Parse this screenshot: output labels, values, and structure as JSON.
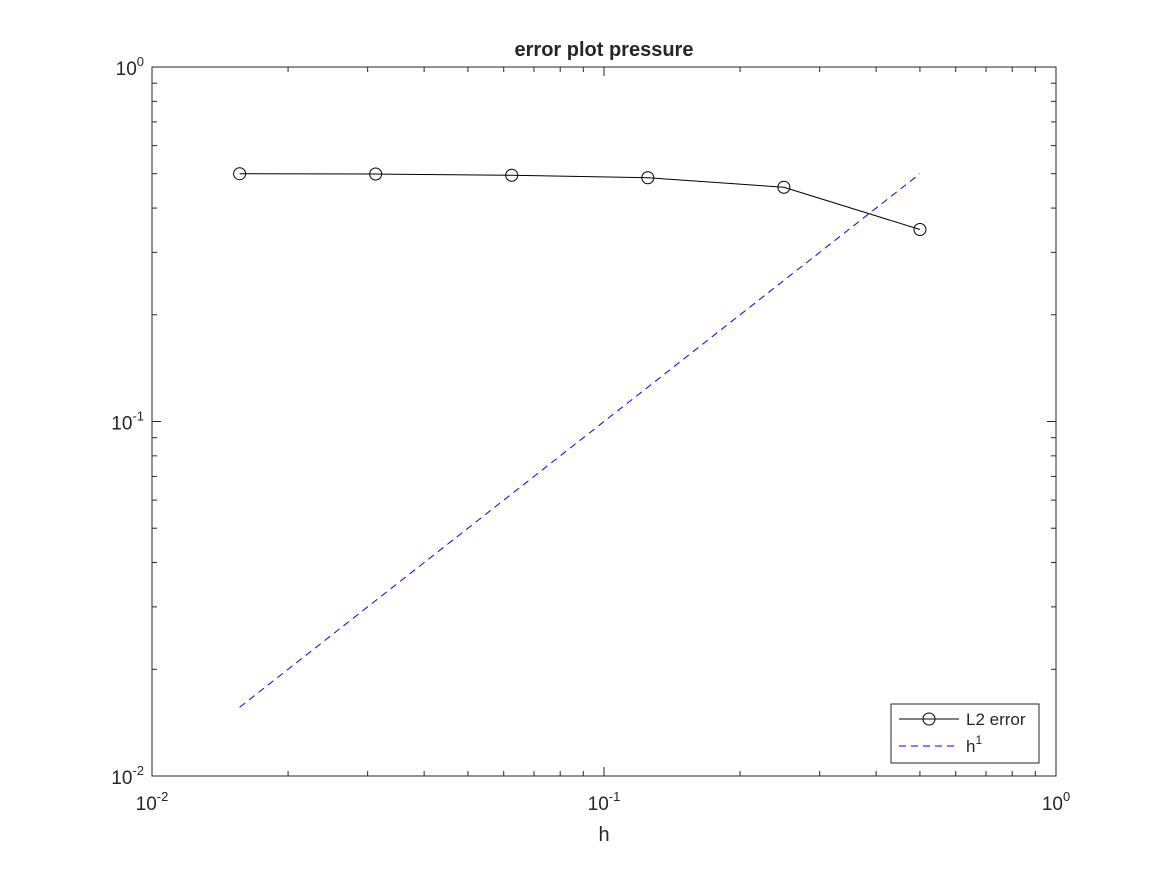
{
  "chart_data": {
    "type": "line",
    "title": "error plot pressure",
    "xlabel": "h",
    "ylabel": "",
    "xscale": "log",
    "yscale": "log",
    "xlim": [
      0.01,
      1
    ],
    "ylim": [
      0.01,
      1
    ],
    "grid": false,
    "legend_position": "bottom-right",
    "x_ticks": [
      {
        "value": 0.01,
        "base": "10",
        "exp": "-2"
      },
      {
        "value": 0.1,
        "base": "10",
        "exp": "-1"
      },
      {
        "value": 1,
        "base": "10",
        "exp": "0"
      }
    ],
    "y_ticks": [
      {
        "value": 0.01,
        "base": "10",
        "exp": "-2"
      },
      {
        "value": 0.1,
        "base": "10",
        "exp": "-1"
      },
      {
        "value": 1,
        "base": "10",
        "exp": "0"
      }
    ],
    "series": [
      {
        "name": "L2 error",
        "color": "#000000",
        "line_style": "solid",
        "marker": "circle",
        "x": [
          0.015625,
          0.03125,
          0.0625,
          0.125,
          0.25,
          0.5
        ],
        "y": [
          0.5,
          0.499,
          0.495,
          0.487,
          0.458,
          0.348
        ]
      },
      {
        "name": "h",
        "name_superscript": "1",
        "color": "#0000ff",
        "line_style": "dashed",
        "marker": "none",
        "x": [
          0.015625,
          0.5
        ],
        "y": [
          0.015625,
          0.5
        ]
      }
    ]
  }
}
